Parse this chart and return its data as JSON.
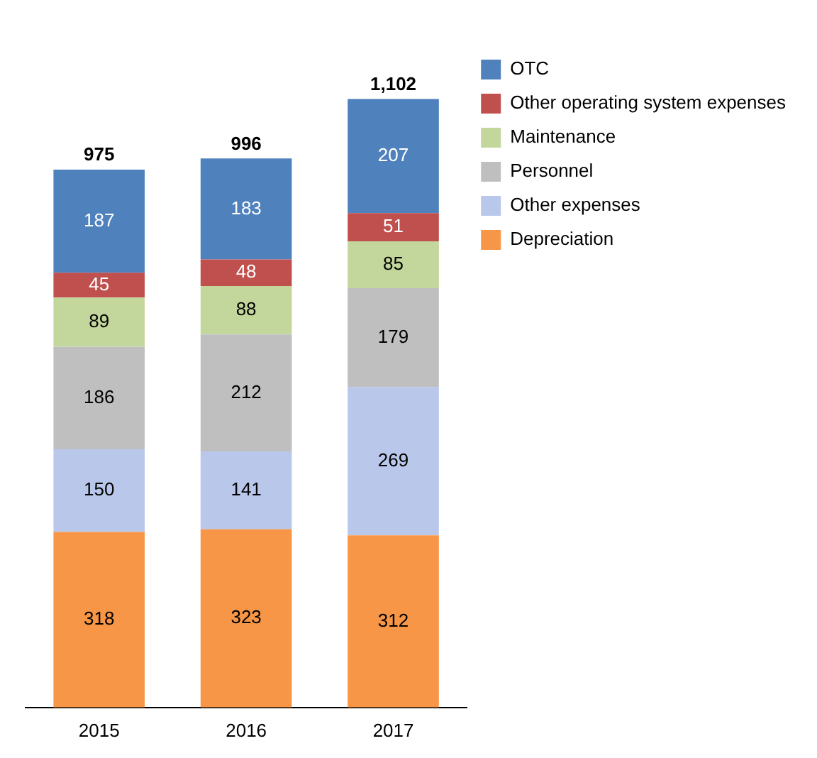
{
  "chart_data": {
    "type": "bar",
    "stacked": true,
    "categories": [
      "2015",
      "2016",
      "2017"
    ],
    "series": [
      {
        "name": "Depreciation",
        "color": "#f79646",
        "values": [
          318,
          323,
          312
        ]
      },
      {
        "name": "Other expenses",
        "color": "#b9c7ea",
        "values": [
          150,
          141,
          269
        ]
      },
      {
        "name": "Personnel",
        "color": "#bfbfbf",
        "values": [
          186,
          212,
          179
        ]
      },
      {
        "name": "Maintenance",
        "color": "#c3d69b",
        "values": [
          89,
          88,
          85
        ]
      },
      {
        "name": "Other operating system expenses",
        "color": "#c0504d",
        "values": [
          45,
          48,
          51
        ]
      },
      {
        "name": "OTC",
        "color": "#4f81bd",
        "values": [
          187,
          183,
          207
        ]
      }
    ],
    "totals": [
      "975",
      "996",
      "1,102"
    ],
    "data_labels": true,
    "tick_labels": "x",
    "grid": false,
    "legend": "top right"
  }
}
